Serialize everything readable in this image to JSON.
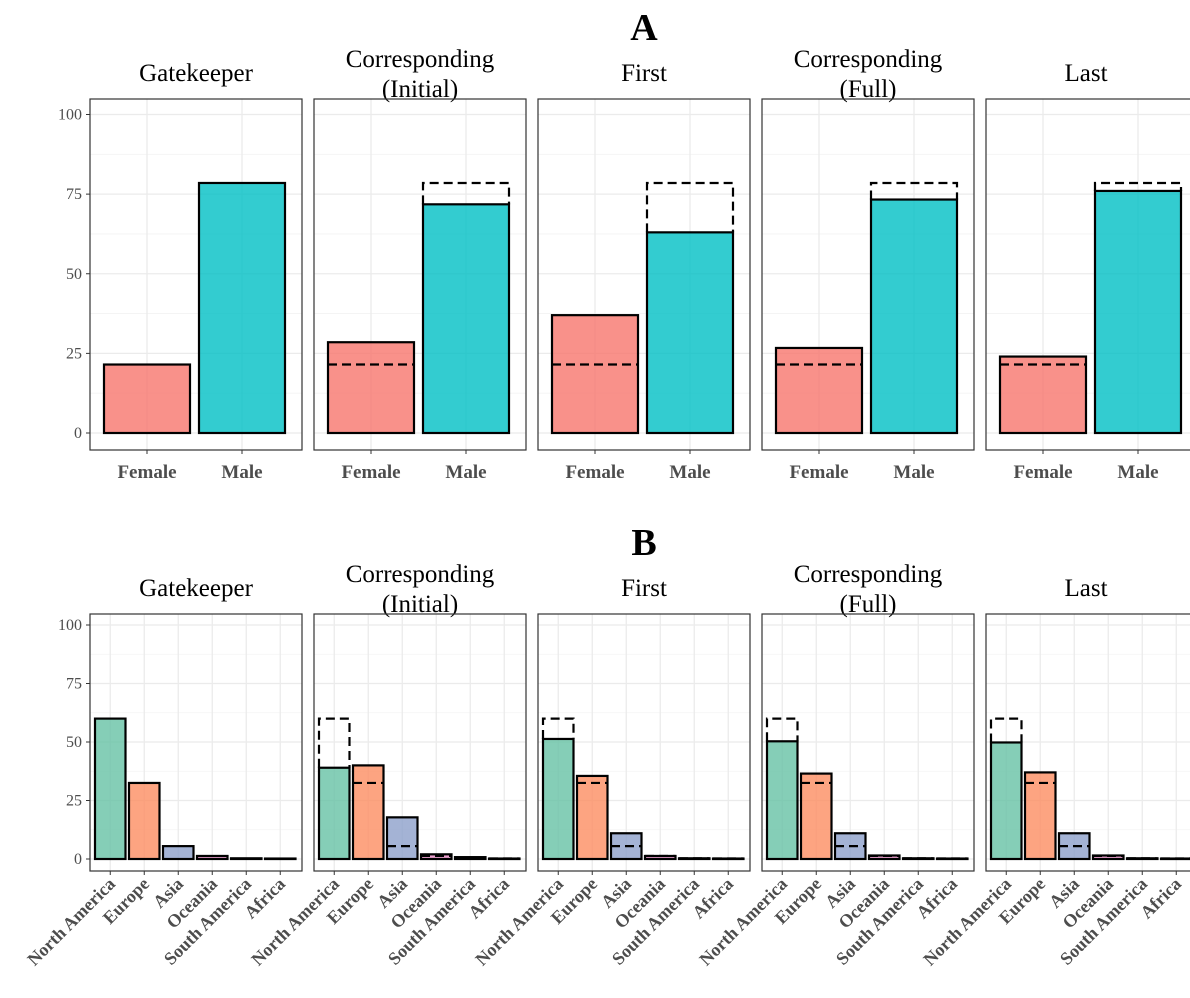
{
  "chart_data": [
    {
      "panel": "A",
      "type": "bar",
      "ylim": [
        0,
        100
      ],
      "yticks": [
        0,
        25,
        50,
        75,
        100
      ],
      "grid": true,
      "categories": [
        "Female",
        "Male"
      ],
      "colors": {
        "Female": "#F8766D",
        "Male": "#00BFC4"
      },
      "reference_facet": "Gatekeeper",
      "facets": [
        {
          "title": "Gatekeeper",
          "values": [
            21.5,
            78.5
          ]
        },
        {
          "title": "Corresponding\n(Initial)",
          "values": [
            28.5,
            71.8
          ]
        },
        {
          "title": "First",
          "values": [
            37.0,
            63.0
          ]
        },
        {
          "title": "Corresponding\n(Full)",
          "values": [
            26.7,
            73.3
          ]
        },
        {
          "title": "Last",
          "values": [
            24.0,
            76.0
          ]
        }
      ]
    },
    {
      "panel": "B",
      "type": "bar",
      "ylim": [
        0,
        100
      ],
      "yticks": [
        0,
        25,
        50,
        75,
        100
      ],
      "grid": true,
      "categories": [
        "North America",
        "Europe",
        "Asia",
        "Oceania",
        "South America",
        "Africa"
      ],
      "colors": {
        "North America": "#66C2A5",
        "Europe": "#FC8D62",
        "Asia": "#8DA0CB",
        "Oceania": "#E78AC3",
        "South America": "#A6D854",
        "Africa": "#FFD92F"
      },
      "reference_facet": "Gatekeeper",
      "facets": [
        {
          "title": "Gatekeeper",
          "values": [
            60.0,
            32.5,
            5.5,
            1.3,
            0.3,
            0.2
          ]
        },
        {
          "title": "Corresponding\n(Initial)",
          "values": [
            39.0,
            40.0,
            17.8,
            2.0,
            0.8,
            0.2
          ]
        },
        {
          "title": "First",
          "values": [
            51.3,
            35.5,
            11.0,
            1.3,
            0.3,
            0.2
          ]
        },
        {
          "title": "Corresponding\n(Full)",
          "values": [
            50.3,
            36.5,
            11.0,
            1.5,
            0.3,
            0.2
          ]
        },
        {
          "title": "Last",
          "values": [
            49.8,
            37.0,
            11.0,
            1.5,
            0.3,
            0.2
          ]
        }
      ]
    }
  ]
}
